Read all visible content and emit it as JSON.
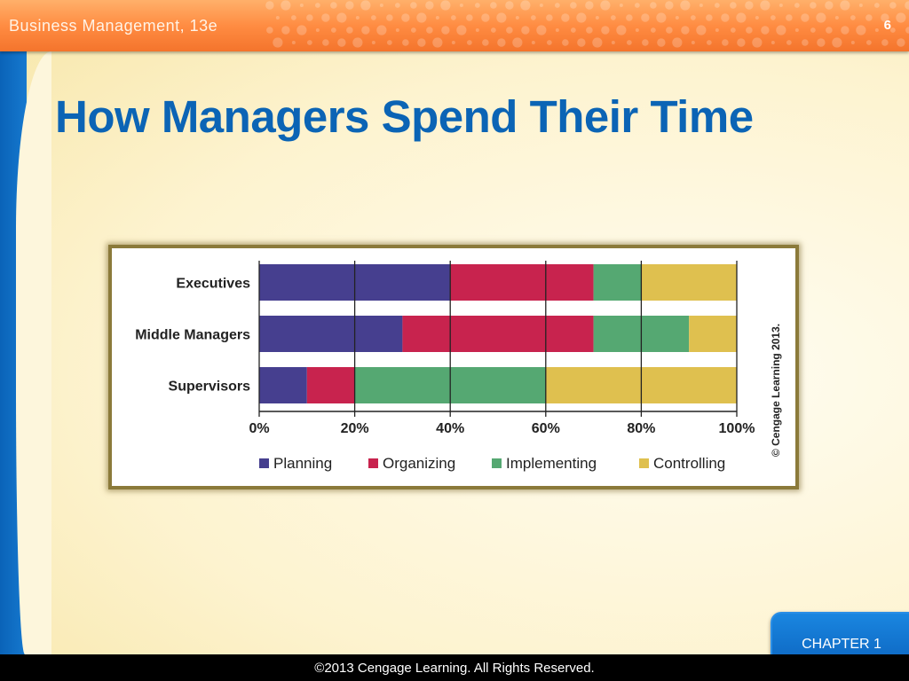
{
  "header": {
    "title": "Business Management, 13e",
    "slide_number": "6"
  },
  "page_title": "How Managers Spend Their Time",
  "footer": {
    "copyright": "©2013 Cengage Learning. All Rights Reserved."
  },
  "chapter_button": {
    "label": "CHAPTER 1"
  },
  "colors": {
    "header": "#ff8c42",
    "title": "#0b64b5",
    "planning": "#463f8f",
    "organizing": "#c8234e",
    "implementing": "#55a872",
    "controlling": "#dfc04f"
  },
  "chart_data": {
    "type": "bar",
    "orientation": "horizontal",
    "stacked": true,
    "categories": [
      "Executives",
      "Middle Managers",
      "Supervisors"
    ],
    "series": [
      {
        "name": "Planning",
        "color": "#463f8f",
        "values": [
          40,
          30,
          10
        ]
      },
      {
        "name": "Organizing",
        "color": "#c8234e",
        "values": [
          30,
          40,
          10
        ]
      },
      {
        "name": "Implementing",
        "color": "#55a872",
        "values": [
          10,
          20,
          40
        ]
      },
      {
        "name": "Controlling",
        "color": "#dfc04f",
        "values": [
          20,
          10,
          40
        ]
      }
    ],
    "xticks": [
      "0%",
      "20%",
      "40%",
      "60%",
      "80%",
      "100%"
    ],
    "xlim": [
      0,
      100
    ],
    "grid": true,
    "legend": "bottom",
    "credit": "© Cengage Learning 2013."
  }
}
